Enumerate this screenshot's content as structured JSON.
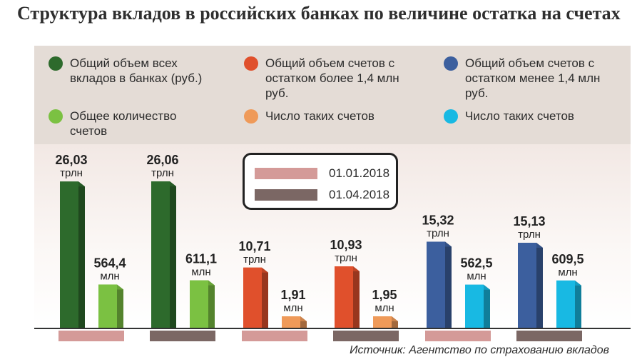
{
  "title": "Структура вкладов в российских банках по величине остатка на счетах",
  "legend": [
    {
      "label": "Общий объем всех вкладов в банках (руб.)",
      "color": "#2d6a2c"
    },
    {
      "label": "Общий объем счетов с остатком более 1,4 млн руб.",
      "color": "#e0502c"
    },
    {
      "label": "Общий объем счетов с остатком менее 1,4 млн руб.",
      "color": "#3c5f9e"
    },
    {
      "label": "Общее количество счетов",
      "color": "#7bc142"
    },
    {
      "label": "Число таких счетов",
      "color": "#ef9a59"
    },
    {
      "label": "Число таких счетов",
      "color": "#18b9e3"
    }
  ],
  "dates": [
    {
      "label": "01.01.2018",
      "color": "#d49a98"
    },
    {
      "label": "01.04.2018",
      "color": "#7b6764"
    }
  ],
  "source": "Источник: Агентство по страхованию вкладов",
  "chart_data": {
    "type": "bar",
    "groups": [
      {
        "date": "01.01.2018",
        "bars": [
          {
            "value": 26.03,
            "label": "26,03",
            "unit": "трлн",
            "color": "#2d6a2c"
          },
          {
            "value": 564.4,
            "label": "564,4",
            "unit": "млн",
            "color": "#7bc142"
          }
        ]
      },
      {
        "date": "01.04.2018",
        "bars": [
          {
            "value": 26.06,
            "label": "26,06",
            "unit": "трлн",
            "color": "#2d6a2c"
          },
          {
            "value": 611.1,
            "label": "611,1",
            "unit": "млн",
            "color": "#7bc142"
          }
        ]
      },
      {
        "date": "01.01.2018",
        "bars": [
          {
            "value": 10.71,
            "label": "10,71",
            "unit": "трлн",
            "color": "#e0502c"
          },
          {
            "value": 1.91,
            "label": "1,91",
            "unit": "млн",
            "color": "#ef9a59"
          }
        ]
      },
      {
        "date": "01.04.2018",
        "bars": [
          {
            "value": 10.93,
            "label": "10,93",
            "unit": "трлн",
            "color": "#e0502c"
          },
          {
            "value": 1.95,
            "label": "1,95",
            "unit": "млн",
            "color": "#ef9a59"
          }
        ]
      },
      {
        "date": "01.01.2018",
        "bars": [
          {
            "value": 15.32,
            "label": "15,32",
            "unit": "трлн",
            "color": "#3c5f9e"
          },
          {
            "value": 562.5,
            "label": "562,5",
            "unit": "млн",
            "color": "#18b9e3"
          }
        ]
      },
      {
        "date": "01.04.2018",
        "bars": [
          {
            "value": 15.13,
            "label": "15,13",
            "unit": "трлн",
            "color": "#3c5f9e"
          },
          {
            "value": 609.5,
            "label": "609,5",
            "unit": "млн",
            "color": "#18b9e3"
          }
        ]
      }
    ]
  }
}
